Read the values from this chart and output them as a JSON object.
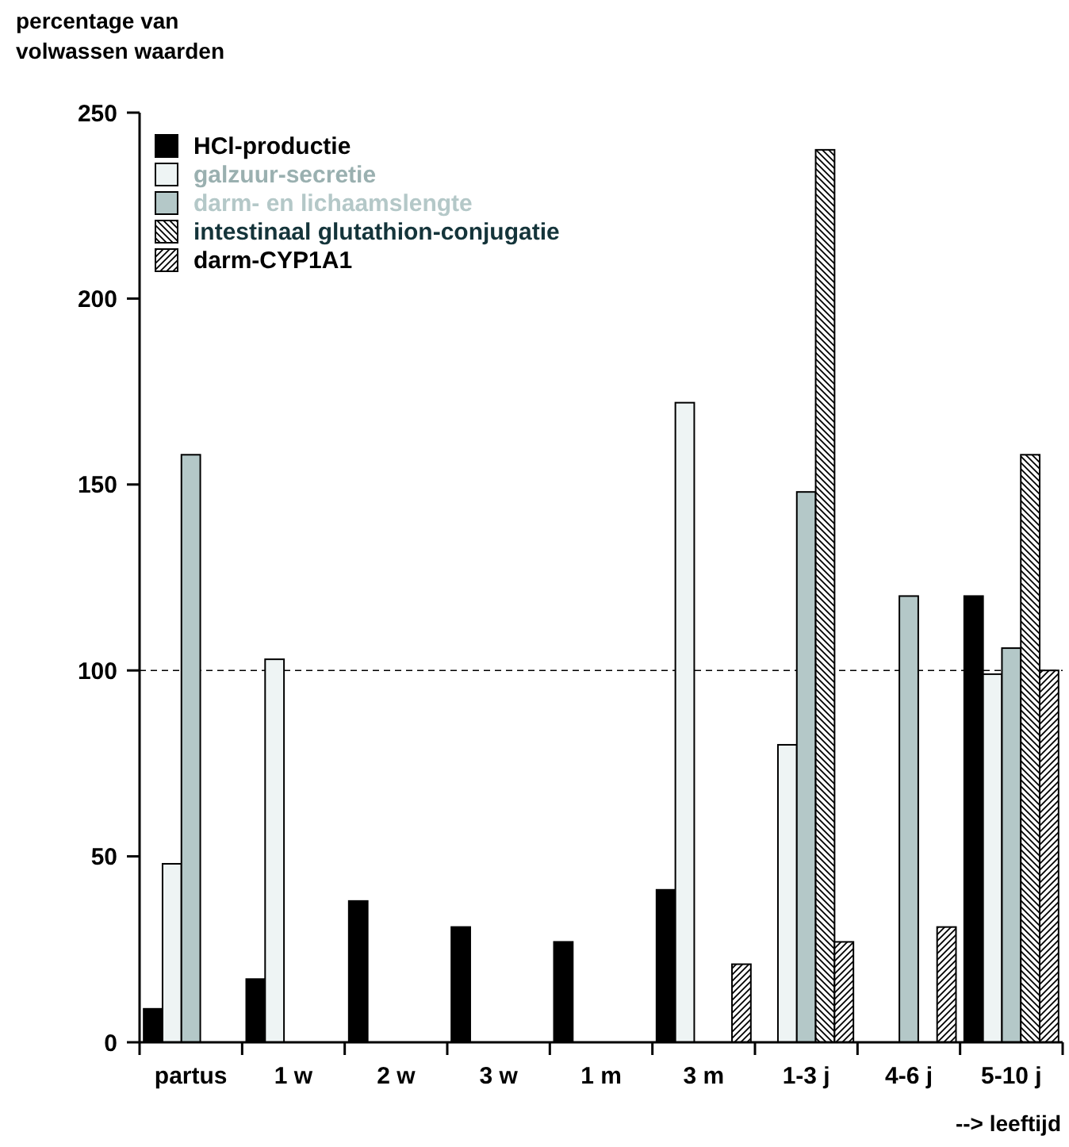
{
  "chart_data": {
    "type": "bar",
    "ylabel": "percentage van\nvolwassen waarden",
    "xlabel": "--> leeftijd",
    "categories": [
      "partus",
      "1 w",
      "2 w",
      "3 w",
      "1 m",
      "3 m",
      "1-3 j",
      "4-6 j",
      "5-10 j"
    ],
    "series": [
      {
        "name": "HCl-productie",
        "color": "#000000",
        "values": [
          9,
          17,
          38,
          31,
          27,
          41,
          null,
          null,
          120
        ]
      },
      {
        "name": "galzuur-secretie",
        "color": "#eef4f4",
        "values": [
          48,
          103,
          null,
          null,
          null,
          172,
          80,
          null,
          99
        ]
      },
      {
        "name": "darm- en lichaamslengte",
        "color": "#b4c8c8",
        "values": [
          158,
          null,
          null,
          null,
          null,
          null,
          148,
          120,
          106
        ]
      },
      {
        "name": "intestinaal glutathion-conjugatie",
        "color": "#000000",
        "values": [
          null,
          null,
          null,
          null,
          null,
          null,
          240,
          null,
          158
        ]
      },
      {
        "name": "darm-CYP1A1",
        "color": "#000000",
        "values": [
          null,
          null,
          null,
          null,
          null,
          21,
          27,
          31,
          100
        ]
      }
    ],
    "ylim": [
      0,
      250
    ],
    "yticks": [
      0,
      50,
      100,
      150,
      200,
      250
    ],
    "grid": false,
    "legend": "top left",
    "ref_lines": [
      {
        "axis": "y",
        "value": 100,
        "line_style": "dashed",
        "color": "#000000"
      }
    ]
  }
}
